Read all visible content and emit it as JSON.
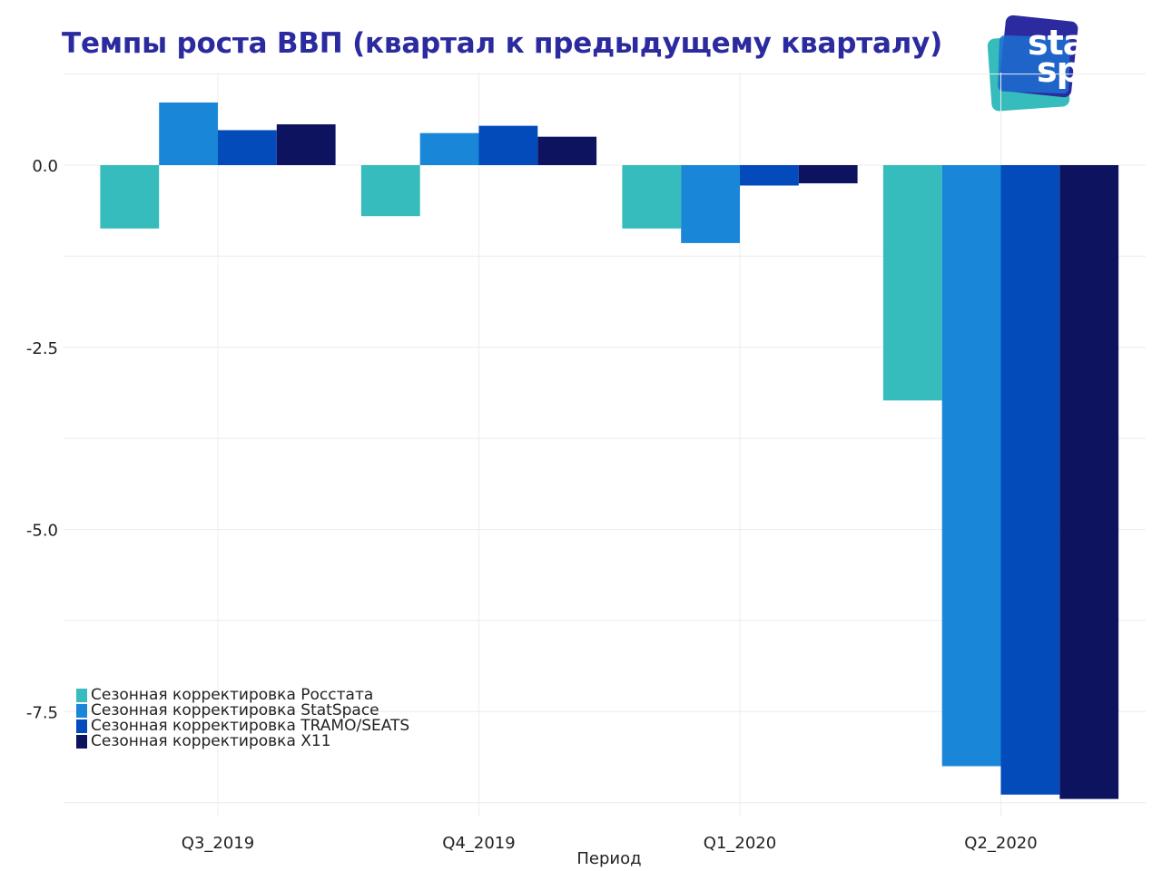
{
  "title": "Темпы роста ВВП (квартал к предыдущему кварталу)",
  "logo": {
    "line1": "stat",
    "line2": "space"
  },
  "chart_data": {
    "type": "bar",
    "title": "Темпы роста ВВП (квартал к предыдущему кварталу)",
    "xlabel": "Период",
    "ylabel": "",
    "categories": [
      "Q3_2019",
      "Q4_2019",
      "Q1_2020",
      "Q2_2020"
    ],
    "series": [
      {
        "name": "Сезонная корректировка Росстата",
        "color": "#36bcbc",
        "values": [
          -0.87,
          -0.7,
          -0.87,
          -3.23
        ]
      },
      {
        "name": "Сезонная корректировка StatSpace",
        "color": "#1a86d8",
        "values": [
          0.86,
          0.44,
          -1.07,
          -8.25
        ]
      },
      {
        "name": "Сезонная корректировка TRAMO/SEATS",
        "color": "#034abb",
        "values": [
          0.48,
          0.54,
          -0.28,
          -8.64
        ]
      },
      {
        "name": "Сезонная корректировка X11",
        "color": "#0d135f",
        "values": [
          0.56,
          0.39,
          -0.25,
          -8.7
        ]
      }
    ],
    "yticks": [
      0.0,
      -2.5,
      -5.0,
      -7.5
    ],
    "ytick_labels": [
      "0.0",
      "-2.5",
      "-5.0",
      "-7.5"
    ],
    "ylim": [
      -8.8,
      1.25
    ],
    "grid": true,
    "legend_position": "bottom-left"
  }
}
